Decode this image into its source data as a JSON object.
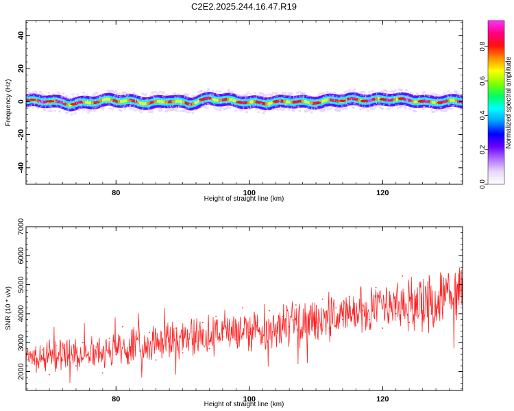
{
  "chart_data": [
    {
      "type": "heatmap",
      "title": "C2E2.2025.244.16.47.R19",
      "xlabel": "Height of straight line (km)",
      "ylabel": "Frequency (Hz)",
      "xlim": [
        66.5,
        132
      ],
      "ylim": [
        -50,
        49
      ],
      "xticks": [
        80,
        100,
        120
      ],
      "yticks": [
        40,
        20,
        0,
        -20,
        -40
      ],
      "colorbar": {
        "label": "Normalized spectral amplitude",
        "range": [
          0.0,
          0.95
        ],
        "ticks": [
          0.0,
          0.2,
          0.4,
          0.6,
          0.8
        ],
        "tick_labels": [
          "0.0",
          "0.2",
          "0.4",
          "0.6",
          "0.8"
        ],
        "colormap": [
          "#ffffff",
          "#e8d8f8",
          "#b070ff",
          "#6a00ff",
          "#0000ff",
          "#00a0ff",
          "#00ffff",
          "#00ff60",
          "#80ff00",
          "#ffff00",
          "#ff9000",
          "#ff1010",
          "#ff0080",
          "#ff30ff"
        ]
      },
      "ridge_samples": {
        "x": [
          67,
          70,
          73,
          76,
          79,
          82,
          85,
          88,
          91,
          94,
          97,
          100,
          103,
          106,
          109,
          112,
          115,
          118,
          121,
          124,
          127,
          130,
          132
        ],
        "frequency": [
          0.5,
          0.3,
          -1.5,
          -0.5,
          1.0,
          0.2,
          -1.0,
          0.5,
          -1.2,
          1.8,
          0.8,
          -0.6,
          -0.8,
          0.3,
          -0.7,
          0.5,
          1.2,
          0.8,
          1.5,
          0.9,
          -0.5,
          0.2,
          0.3
        ],
        "peak_amplitude": [
          0.9,
          0.95,
          0.9,
          0.7,
          0.6,
          0.7,
          0.65,
          0.6,
          0.7,
          0.85,
          0.6,
          0.9,
          0.75,
          0.85,
          0.7,
          0.75,
          0.9,
          0.95,
          0.9,
          0.95,
          0.9,
          0.85,
          0.8
        ]
      },
      "grid": false
    },
    {
      "type": "line",
      "xlabel": "Height of straight line (km)",
      "ylabel": "SNR (10 * v/v)",
      "xlim": [
        66.5,
        132
      ],
      "ylim": [
        1350,
        7000
      ],
      "xticks": [
        80,
        100,
        120
      ],
      "yticks": [
        2000,
        3000,
        4000,
        5000,
        6000,
        7000
      ],
      "series": [
        {
          "color": "#ff2020",
          "trend_x": [
            66.5,
            75,
            85,
            95,
            105,
            115,
            125,
            132
          ],
          "trend_y": [
            2480,
            2650,
            2950,
            3300,
            3600,
            3950,
            4350,
            4600
          ],
          "x": [
            67,
            68,
            69,
            70,
            71,
            72,
            73,
            74,
            75,
            76,
            77,
            78,
            79,
            80,
            81,
            82,
            83,
            84,
            85,
            86,
            87,
            88,
            89,
            90,
            91,
            92,
            93,
            94,
            95,
            96,
            97,
            98,
            99,
            100,
            101,
            102,
            103,
            104,
            105,
            106,
            107,
            108,
            109,
            110,
            111,
            112,
            113,
            114,
            115,
            116,
            117,
            118,
            119,
            120,
            121,
            122,
            123,
            124,
            125,
            126,
            127,
            128,
            129,
            130,
            131,
            132
          ],
          "y": [
            2600,
            2350,
            2750,
            1900,
            2900,
            2400,
            2700,
            2200,
            3000,
            2500,
            2850,
            1950,
            3150,
            2600,
            3550,
            2300,
            3200,
            2700,
            3350,
            2400,
            3100,
            2850,
            3500,
            2650,
            3300,
            3050,
            3700,
            2800,
            3900,
            3200,
            3450,
            3100,
            4200,
            3350,
            3700,
            3000,
            4100,
            3400,
            3900,
            3550,
            4300,
            3350,
            4000,
            3700,
            4500,
            3500,
            4200,
            3800,
            4600,
            3600,
            4100,
            3800,
            4900,
            3500,
            4300,
            4000,
            5300,
            3700,
            4600,
            4100,
            4900,
            4300,
            4200,
            4800,
            4500,
            5000
          ]
        }
      ],
      "grid": false
    }
  ]
}
